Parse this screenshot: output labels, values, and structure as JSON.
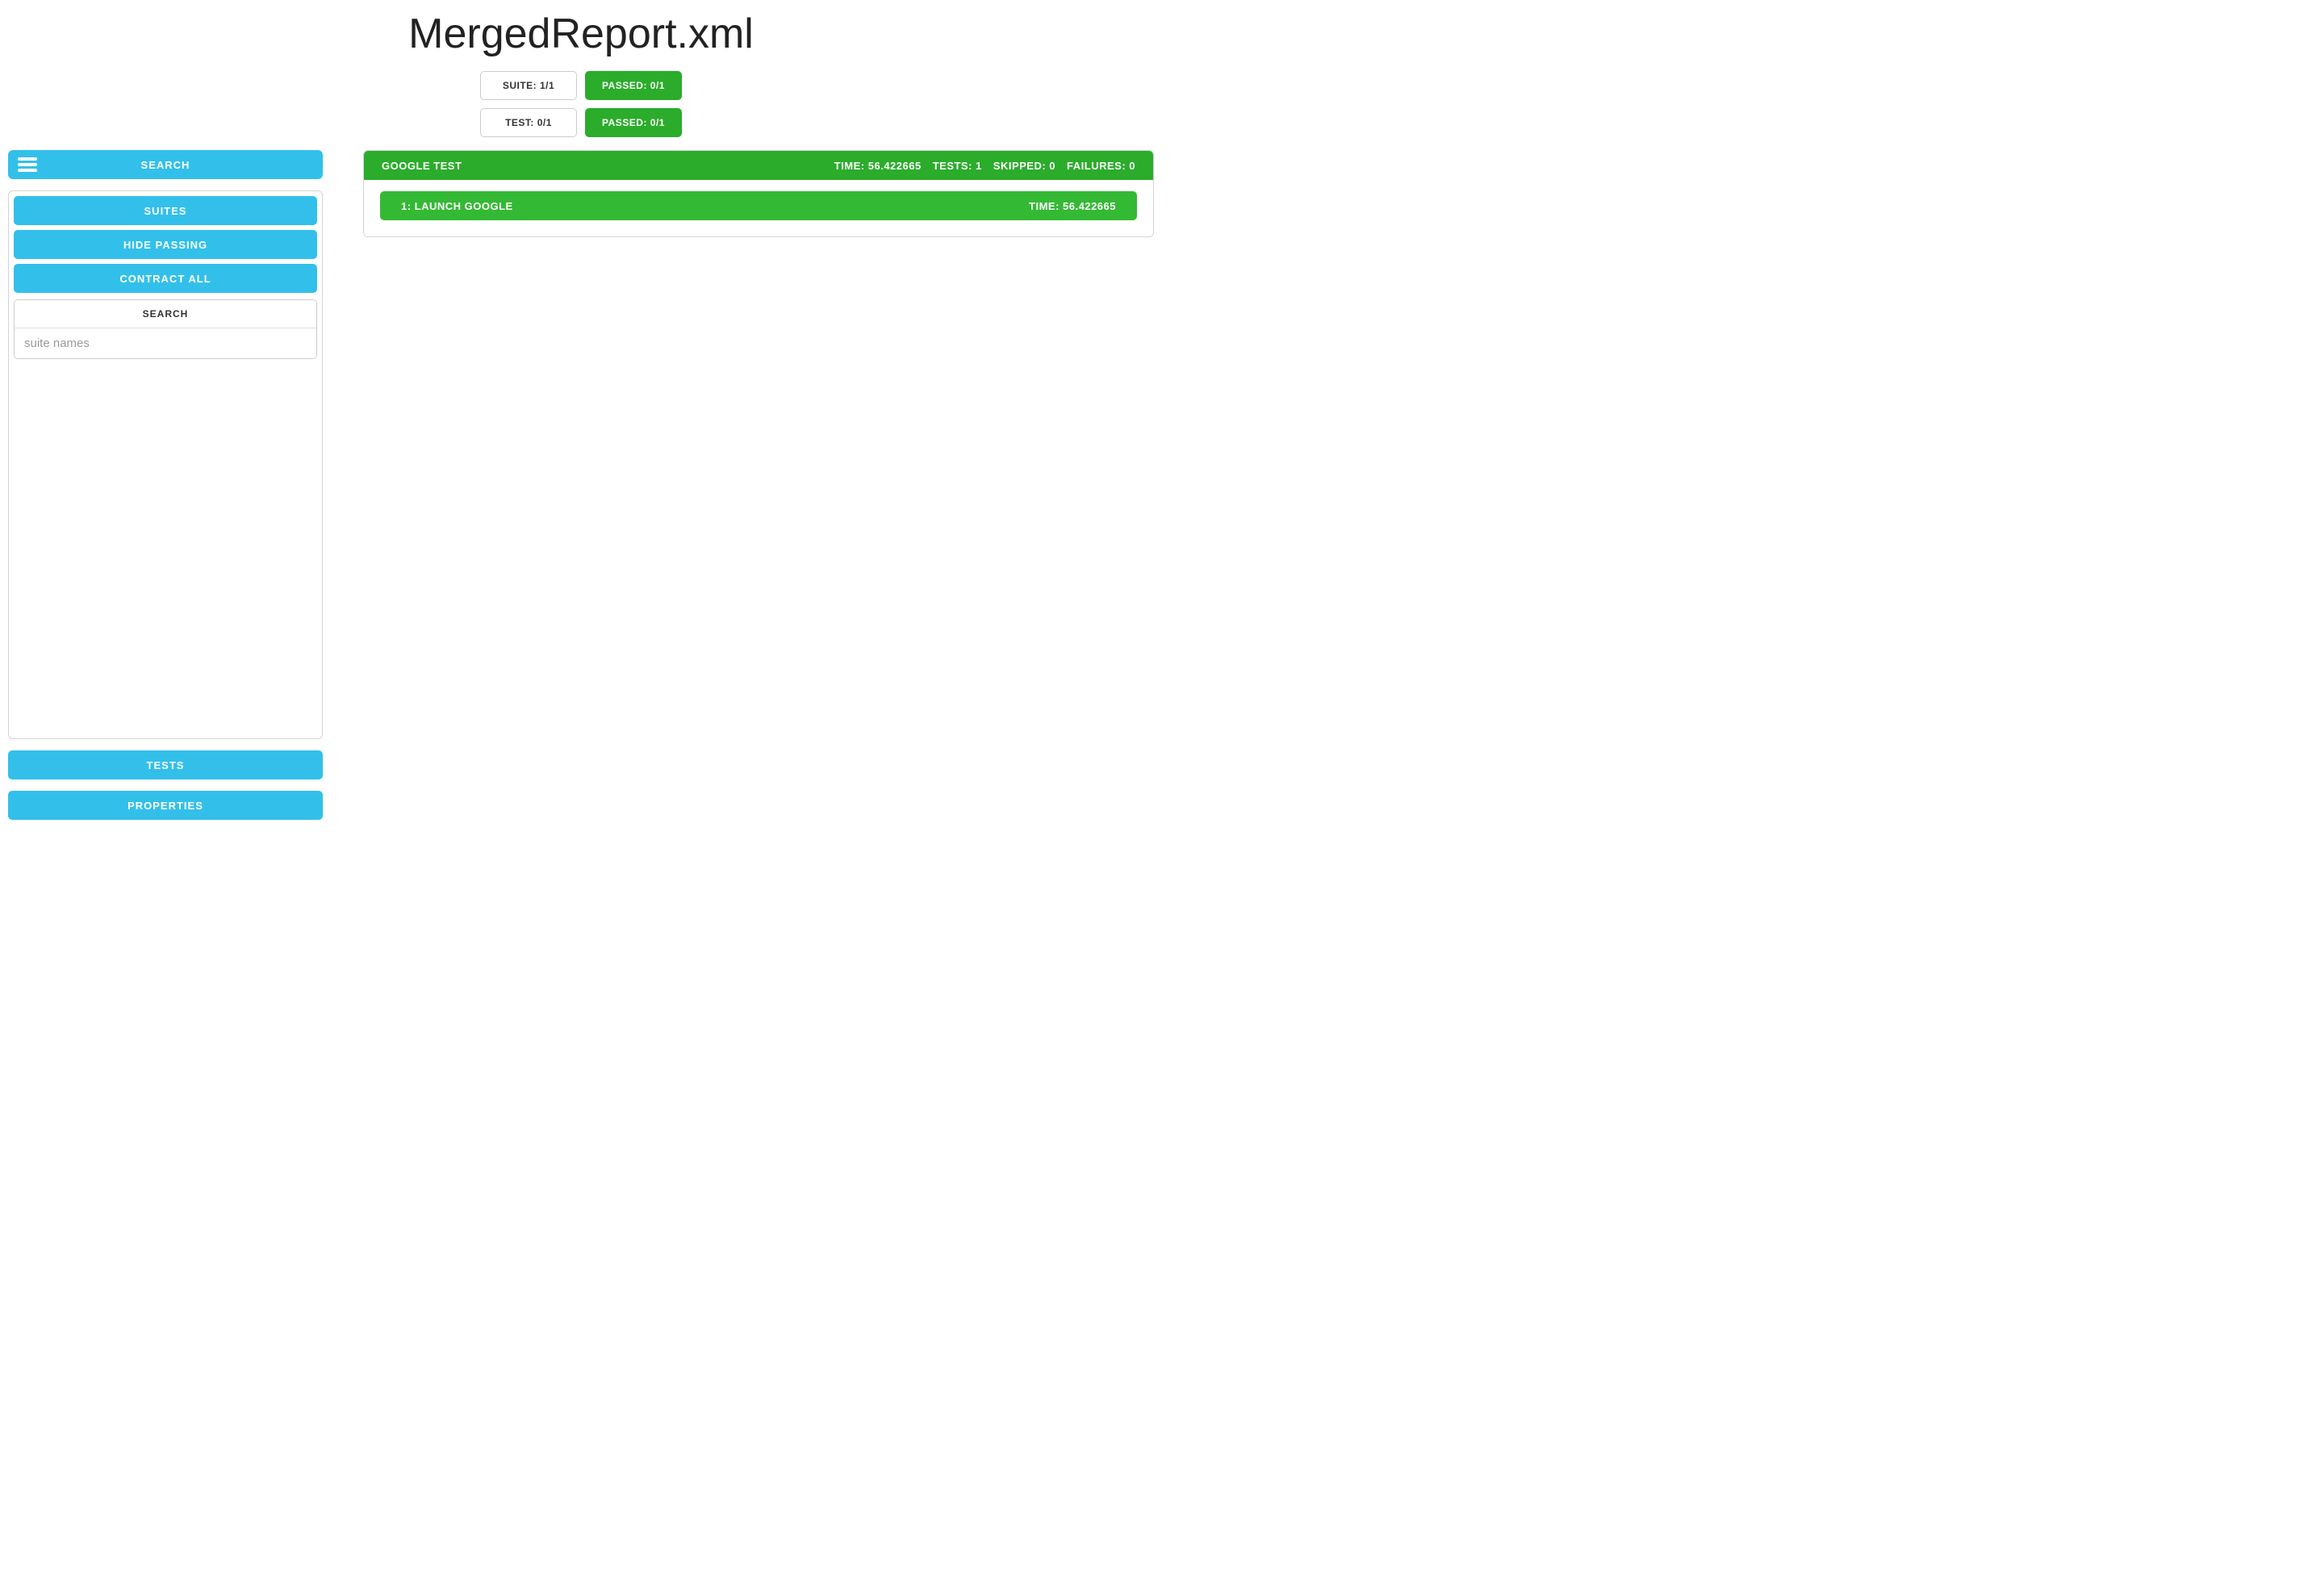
{
  "page": {
    "title": "MergedReport.xml"
  },
  "summary": {
    "rows": [
      {
        "left": "SUITE: 1/1",
        "right": "PASSED: 0/1"
      },
      {
        "left": "TEST: 0/1",
        "right": "PASSED: 0/1"
      }
    ]
  },
  "sidebar": {
    "search_label": "SEARCH",
    "suites_btn": "SUITES",
    "hide_passing_btn": "HIDE PASSING",
    "contract_all_btn": "CONTRACT ALL",
    "searchbox_header": "SEARCH",
    "searchbox_placeholder": "suite names",
    "tests_btn": "TESTS",
    "properties_btn": "PROPERTIES"
  },
  "suite": {
    "title": "GOOGLE TEST",
    "stats": {
      "time": "TIME: 56.422665",
      "tests": "TESTS: 1",
      "skipped": "SKIPPED: 0",
      "failures": "FAILURES: 0"
    },
    "tests": [
      {
        "title": "1: LAUNCH GOOGLE",
        "time": "TIME: 56.422665"
      }
    ]
  },
  "colors": {
    "blue": "#32c0ea",
    "green_header": "#2bac2b",
    "green_row": "#34b934",
    "border": "#d4d4d4",
    "pill_border": "#cccccc",
    "text": "#333333",
    "bg": "#ffffff"
  }
}
